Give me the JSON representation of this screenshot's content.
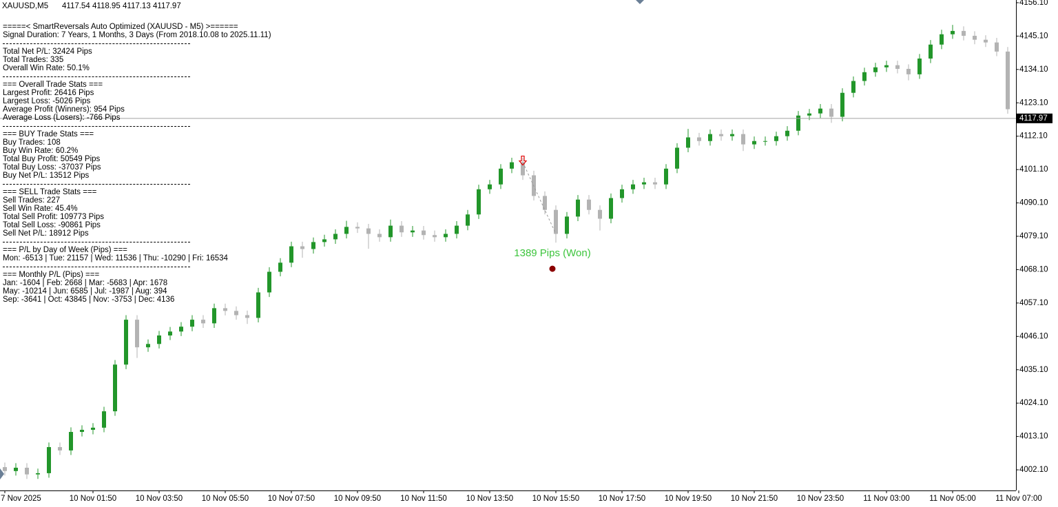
{
  "chart_data": {
    "type": "candlestick",
    "symbol": "XAUUSD,M5",
    "ohlc": [
      4117.54,
      4118.95,
      4117.13,
      4117.97
    ],
    "bid": 4117.97,
    "up_color": "#22962a",
    "down_color": "#b3b3b3",
    "ylim": [
      3995.3,
      4157.0
    ],
    "yticks": [
      {
        "value": 4156.1,
        "label": "4156.10"
      },
      {
        "value": 4145.1,
        "label": "4145.10"
      },
      {
        "value": 4134.1,
        "label": "4134.10"
      },
      {
        "value": 4123.1,
        "label": "4123.10"
      },
      {
        "value": 4112.1,
        "label": "4112.10"
      },
      {
        "value": 4101.1,
        "label": "4101.10"
      },
      {
        "value": 4090.1,
        "label": "4090.10"
      },
      {
        "value": 4079.1,
        "label": "4079.10"
      },
      {
        "value": 4068.1,
        "label": "4068.10"
      },
      {
        "value": 4057.1,
        "label": "4057.10"
      },
      {
        "value": 4046.1,
        "label": "4046.10"
      },
      {
        "value": 4035.1,
        "label": "4035.10"
      },
      {
        "value": 4024.1,
        "label": "4024.10"
      },
      {
        "value": 4013.1,
        "label": "4013.10"
      },
      {
        "value": 4002.1,
        "label": "4002.10"
      }
    ],
    "categories": [
      "7 Nov 2025",
      null,
      null,
      null,
      null,
      null,
      null,
      null,
      "10 Nov 01:50",
      null,
      null,
      null,
      null,
      null,
      "10 Nov 03:50",
      null,
      null,
      null,
      null,
      null,
      "10 Nov 05:50",
      null,
      null,
      null,
      null,
      null,
      "10 Nov 07:50",
      null,
      null,
      null,
      null,
      null,
      "10 Nov 09:50",
      null,
      null,
      null,
      null,
      null,
      "10 Nov 11:50",
      null,
      null,
      null,
      null,
      null,
      "10 Nov 13:50",
      null,
      null,
      null,
      null,
      null,
      "10 Nov 15:50",
      null,
      null,
      null,
      null,
      null,
      "10 Nov 17:50",
      null,
      null,
      null,
      null,
      null,
      "10 Nov 19:50",
      null,
      null,
      null,
      null,
      null,
      "10 Nov 21:50",
      null,
      null,
      null,
      null,
      null,
      "10 Nov 23:50",
      null,
      null,
      null,
      null,
      null,
      "11 Nov 03:00",
      null,
      null,
      null,
      null,
      null,
      "11 Nov 05:00",
      null,
      null,
      null,
      null,
      null,
      "11 Nov 07:00"
    ],
    "open": [
      4003.0,
      4001.7,
      4002.8,
      4000.6,
      4001.0,
      4009.6,
      4008.5,
      4014.6,
      4015.3,
      4016.0,
      4021.4,
      4036.8,
      4051.6,
      4042.5,
      4043.6,
      4046.4,
      4047.7,
      4049.3,
      4051.6,
      4050.4,
      4055.4,
      4054.5,
      4053.1,
      4052.2,
      4060.6,
      4067.4,
      4070.4,
      4075.8,
      4074.9,
      4077.2,
      4078.1,
      4079.9,
      4082.2,
      4081.7,
      4079.9,
      4078.8,
      4082.6,
      4080.4,
      4081.0,
      4079.5,
      4078.8,
      4079.9,
      4082.6,
      4086.3,
      4094.6,
      4096.2,
      4101.4,
      4103.5,
      4099.2,
      4092.4,
      4087.8,
      4079.9,
      4085.6,
      4091.2,
      4087.8,
      4084.9,
      4091.7,
      4094.6,
      4096.2,
      4096.9,
      4096.2,
      4101.4,
      4108.3,
      4111.7,
      4110.5,
      4112.8,
      4112.1,
      4112.8,
      4109.4,
      4110.5,
      4110.5,
      4112.1,
      4113.9,
      4118.9,
      4119.6,
      4121.2,
      4118.5,
      4126.4,
      4130.3,
      4133.2,
      4134.8,
      4135.5,
      4134.3,
      4132.5,
      4137.7,
      4142.3,
      4145.7,
      4146.8,
      4145.2,
      4143.9,
      4143.0,
      4140.0,
      null
    ],
    "high": [
      4004.5,
      4004.3,
      4004.3,
      4002.5,
      4011.1,
      4011.1,
      4016.1,
      4016.8,
      4017.5,
      4022.9,
      4038.3,
      4053.1,
      4053.1,
      4045.1,
      4047.9,
      4049.2,
      4050.8,
      4053.1,
      4053.1,
      4056.9,
      4056.9,
      4056.0,
      4054.6,
      4062.1,
      4068.9,
      4071.9,
      4077.3,
      4077.3,
      4078.7,
      4079.6,
      4081.4,
      4084.2,
      4083.7,
      4083.2,
      4081.4,
      4084.6,
      4084.1,
      4082.5,
      4082.5,
      4081.0,
      4081.4,
      4084.1,
      4087.8,
      4096.1,
      4097.7,
      4102.9,
      4105.0,
      4105.0,
      4100.7,
      4093.9,
      4089.3,
      4087.1,
      4092.7,
      4092.7,
      4089.3,
      4093.2,
      4096.1,
      4097.7,
      4098.4,
      4098.4,
      4102.9,
      4109.8,
      4114.5,
      4113.2,
      4114.3,
      4114.3,
      4114.3,
      4114.3,
      4112.0,
      4112.0,
      4113.6,
      4115.4,
      4120.4,
      4121.1,
      4122.7,
      4122.7,
      4127.9,
      4131.8,
      4134.7,
      4136.3,
      4137.0,
      4137.0,
      4135.8,
      4139.2,
      4143.8,
      4147.2,
      4148.8,
      4148.3,
      4146.7,
      4145.4,
      4144.5,
      4141.5,
      null
    ],
    "low": [
      4000.2,
      4000.2,
      3999.1,
      3999.1,
      3999.5,
      4007.0,
      4007.0,
      4013.1,
      4013.8,
      4014.5,
      4019.9,
      4035.3,
      4039.0,
      4041.0,
      4042.1,
      4044.9,
      4046.2,
      4047.8,
      4048.9,
      4048.9,
      4053.0,
      4051.6,
      4050.2,
      4050.7,
      4059.1,
      4065.9,
      4068.9,
      4072.0,
      4073.4,
      4075.7,
      4076.6,
      4078.4,
      4080.2,
      4075.0,
      4077.3,
      4077.3,
      4078.9,
      4078.9,
      4078.0,
      4077.3,
      4077.3,
      4078.4,
      4081.1,
      4084.8,
      4093.1,
      4094.7,
      4099.9,
      4097.7,
      4090.9,
      4086.3,
      4077.0,
      4078.4,
      4084.1,
      4086.3,
      4081.0,
      4083.4,
      4090.2,
      4093.1,
      4094.7,
      4094.7,
      4094.7,
      4099.9,
      4106.8,
      4109.0,
      4109.0,
      4110.6,
      4110.6,
      4107.2,
      4107.9,
      4109.0,
      4109.0,
      4110.6,
      4112.4,
      4117.4,
      4118.1,
      4116.5,
      4117.0,
      4124.9,
      4128.8,
      4131.7,
      4133.3,
      4132.8,
      4130.5,
      4131.0,
      4136.2,
      4140.8,
      4144.2,
      4143.7,
      4142.4,
      4141.5,
      4138.5,
      4119.5,
      null
    ],
    "close": [
      4001.7,
      4002.8,
      4000.6,
      4001.0,
      4009.6,
      4008.5,
      4014.6,
      4015.3,
      4016.0,
      4021.4,
      4036.8,
      4051.6,
      4042.5,
      4043.6,
      4046.4,
      4047.7,
      4049.3,
      4051.6,
      4050.4,
      4055.4,
      4054.5,
      4053.1,
      4052.2,
      4060.6,
      4067.4,
      4070.4,
      4075.8,
      4074.9,
      4077.2,
      4078.1,
      4079.9,
      4082.2,
      4081.7,
      4079.9,
      4078.8,
      4082.6,
      4080.4,
      4081.0,
      4079.5,
      4078.8,
      4079.9,
      4082.6,
      4086.3,
      4094.6,
      4096.2,
      4101.4,
      4103.5,
      4099.2,
      4092.4,
      4087.8,
      4079.9,
      4085.6,
      4091.2,
      4087.8,
      4084.9,
      4091.7,
      4094.6,
      4096.2,
      4096.9,
      4096.2,
      4101.4,
      4108.3,
      4111.7,
      4110.5,
      4112.8,
      4112.1,
      4112.8,
      4109.4,
      4110.5,
      4110.5,
      4112.1,
      4113.9,
      4118.9,
      4119.6,
      4121.2,
      4118.5,
      4126.4,
      4130.3,
      4133.2,
      4134.8,
      4135.5,
      4134.3,
      4132.5,
      4137.7,
      4142.3,
      4145.7,
      4146.8,
      4145.2,
      4143.9,
      4143.0,
      4140.0,
      4121.0,
      null
    ],
    "signal": {
      "entry_index": 47,
      "entry_price": 4103.5,
      "exit_index": 50,
      "exit_price": 4079.9,
      "marker_price": 4068.4,
      "label": "1389 Pips (Won)",
      "color": "#e00000",
      "label_color": "#3cc43c",
      "marker_color": "#8b0000"
    }
  },
  "panel": [
    [
      "=====< SmartReversals Auto Optimized (XAUUSD - M5) >======",
      "Signal Duration: 7 Years, 1 Months, 3 Days (From 2018.10.08 to 2025.11.11)"
    ],
    [
      "Total Net P/L: 32424 Pips",
      "Total Trades: 335",
      "Overall Win Rate: 50.1%"
    ],
    [
      "=== Overall Trade Stats ===",
      "Largest Profit: 26416 Pips",
      "Largest Loss: -5026 Pips",
      "Average Profit (Winners): 954 Pips",
      "Average Loss (Losers): -766 Pips"
    ],
    [
      "=== BUY Trade Stats ===",
      "Buy Trades: 108",
      "Buy Win Rate: 60.2%",
      "Total Buy Profit: 50549 Pips",
      "Total Buy Loss: -37037 Pips",
      "Buy Net P/L: 13512 Pips"
    ],
    [
      "=== SELL Trade Stats ===",
      "Sell Trades: 227",
      "Sell Win Rate: 45.4%",
      "Total Sell Profit: 109773 Pips",
      "Total Sell Loss: -90861 Pips",
      "Sell Net P/L: 18912 Pips"
    ],
    [
      "=== P/L by Day of Week (Pips) ===",
      "Mon: -6513 | Tue: 21157 | Wed: 11536 | Thu: -10290 | Fri: 16534"
    ],
    [
      "=== Monthly P/L (Pips) ===",
      "Jan: -1604 | Feb: 2668 | Mar: -5683 | Apr: 1678",
      "May: -10214 | Jun: 6585 | Jul: -1987 | Aug: 394",
      "Sep: -3641 | Oct: 43845 | Nov: -3753 | Dec: 4136"
    ]
  ]
}
